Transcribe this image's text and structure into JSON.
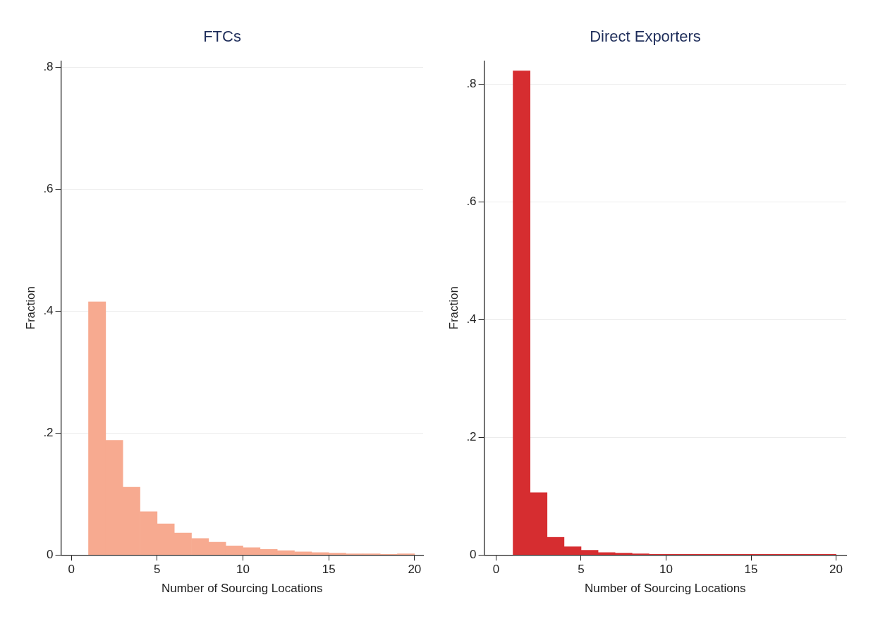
{
  "chart_data": [
    {
      "type": "histogram",
      "title": "FTCs",
      "xlabel": "Number of Sourcing Locations",
      "ylabel": "Fraction",
      "color": "#f7aa90",
      "bins": [
        1,
        2,
        3,
        4,
        5,
        6,
        7,
        8,
        9,
        10,
        11,
        12,
        13,
        14,
        15,
        16,
        17,
        18,
        19,
        20
      ],
      "values": [
        0.415,
        0.188,
        0.111,
        0.071,
        0.051,
        0.036,
        0.027,
        0.021,
        0.015,
        0.012,
        0.009,
        0.007,
        0.005,
        0.004,
        0.003,
        0.002,
        0.002,
        0.001,
        0.002
      ],
      "xlim": [
        -0.6,
        20.5
      ],
      "xticks": [
        0,
        5,
        10,
        15,
        20
      ],
      "ylim": [
        0,
        0.81
      ],
      "yticks": [
        0,
        {
          "value": 0.2,
          "label": ".2"
        },
        {
          "value": 0.4,
          "label": ".4"
        },
        {
          "value": 0.6,
          "label": ".6"
        },
        {
          "value": 0.8,
          "label": ".8"
        }
      ],
      "grid": "y",
      "legend": false
    },
    {
      "type": "histogram",
      "title": "Direct Exporters",
      "xlabel": "Number of Sourcing Locations",
      "ylabel": "Fraction",
      "color": "#d62d30",
      "bins": [
        1,
        2,
        3,
        4,
        5,
        6,
        7,
        8,
        9,
        10,
        11,
        12,
        13,
        14,
        15,
        16,
        17,
        18,
        19,
        20
      ],
      "values": [
        0.823,
        0.106,
        0.03,
        0.014,
        0.008,
        0.004,
        0.003,
        0.002,
        0.001,
        0.001,
        0.001,
        0.001,
        0.001,
        0.001,
        0.001,
        0.001,
        0.001,
        0.001,
        0.001
      ],
      "xlim": [
        -0.7,
        20.6
      ],
      "xticks": [
        0,
        5,
        10,
        15,
        20
      ],
      "ylim": [
        0,
        0.84
      ],
      "yticks": [
        0,
        {
          "value": 0.2,
          "label": ".2"
        },
        {
          "value": 0.4,
          "label": ".4"
        },
        {
          "value": 0.6,
          "label": ".6"
        },
        {
          "value": 0.8,
          "label": ".8"
        }
      ],
      "grid": "y",
      "legend": false
    }
  ]
}
